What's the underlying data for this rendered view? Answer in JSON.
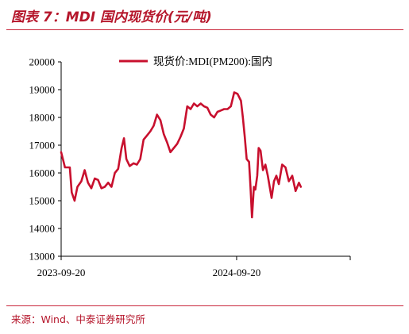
{
  "figure": {
    "title": "图表 7：MDI 国内现货价(元/吨)",
    "source": "来源：Wind、中泰证券研究所"
  },
  "colors": {
    "accent": "#b5162b",
    "series": "#c8102e",
    "axis": "#000000"
  },
  "chart_data": {
    "type": "line",
    "title": "",
    "xlabel": "",
    "ylabel": "",
    "ylim": [
      13000,
      20000
    ],
    "yticks": [
      13000,
      14000,
      15000,
      16000,
      17000,
      18000,
      19000,
      20000
    ],
    "xlim": [
      "2023-09-20",
      "2025-05-15"
    ],
    "xticks": [
      "2023-09-20",
      "2024-09-20"
    ],
    "grid": false,
    "legend": "top",
    "series": [
      {
        "name": "现货价:MDI(PM200):国内",
        "color": "#c8102e",
        "points": [
          [
            "2023-09-20",
            16750
          ],
          [
            "2023-09-28",
            16200
          ],
          [
            "2023-10-08",
            16200
          ],
          [
            "2023-10-12",
            15300
          ],
          [
            "2023-10-18",
            15000
          ],
          [
            "2023-10-24",
            15500
          ],
          [
            "2023-11-01",
            15700
          ],
          [
            "2023-11-08",
            16100
          ],
          [
            "2023-11-15",
            15650
          ],
          [
            "2023-11-22",
            15450
          ],
          [
            "2023-11-29",
            15800
          ],
          [
            "2023-12-06",
            15750
          ],
          [
            "2023-12-13",
            15450
          ],
          [
            "2023-12-20",
            15500
          ],
          [
            "2023-12-27",
            15650
          ],
          [
            "2024-01-03",
            15500
          ],
          [
            "2024-01-10",
            16000
          ],
          [
            "2024-01-17",
            16150
          ],
          [
            "2024-01-24",
            16900
          ],
          [
            "2024-01-29",
            17250
          ],
          [
            "2024-02-03",
            16500
          ],
          [
            "2024-02-10",
            16250
          ],
          [
            "2024-02-18",
            16350
          ],
          [
            "2024-02-25",
            16300
          ],
          [
            "2024-03-03",
            16500
          ],
          [
            "2024-03-10",
            17200
          ],
          [
            "2024-03-17",
            17350
          ],
          [
            "2024-03-24",
            17500
          ],
          [
            "2024-03-31",
            17700
          ],
          [
            "2024-04-07",
            18100
          ],
          [
            "2024-04-14",
            17900
          ],
          [
            "2024-04-21",
            17400
          ],
          [
            "2024-04-28",
            17100
          ],
          [
            "2024-05-05",
            16750
          ],
          [
            "2024-05-12",
            16900
          ],
          [
            "2024-05-19",
            17050
          ],
          [
            "2024-05-26",
            17300
          ],
          [
            "2024-06-02",
            17600
          ],
          [
            "2024-06-09",
            18400
          ],
          [
            "2024-06-16",
            18300
          ],
          [
            "2024-06-23",
            18500
          ],
          [
            "2024-06-30",
            18400
          ],
          [
            "2024-07-07",
            18500
          ],
          [
            "2024-07-14",
            18400
          ],
          [
            "2024-07-21",
            18350
          ],
          [
            "2024-07-28",
            18100
          ],
          [
            "2024-08-04",
            18000
          ],
          [
            "2024-08-11",
            18200
          ],
          [
            "2024-08-18",
            18250
          ],
          [
            "2024-08-25",
            18300
          ],
          [
            "2024-09-01",
            18300
          ],
          [
            "2024-09-08",
            18400
          ],
          [
            "2024-09-15",
            18900
          ],
          [
            "2024-09-22",
            18850
          ],
          [
            "2024-09-29",
            18600
          ],
          [
            "2024-10-03",
            18000
          ],
          [
            "2024-10-07",
            17300
          ],
          [
            "2024-10-11",
            16500
          ],
          [
            "2024-10-16",
            16400
          ],
          [
            "2024-10-19",
            15500
          ],
          [
            "2024-10-22",
            14400
          ],
          [
            "2024-10-26",
            15500
          ],
          [
            "2024-10-29",
            15400
          ],
          [
            "2024-11-02",
            15900
          ],
          [
            "2024-11-05",
            16900
          ],
          [
            "2024-11-09",
            16800
          ],
          [
            "2024-11-14",
            16100
          ],
          [
            "2024-11-19",
            16300
          ],
          [
            "2024-11-24",
            15900
          ],
          [
            "2024-11-29",
            15400
          ],
          [
            "2024-12-02",
            15100
          ],
          [
            "2024-12-07",
            15700
          ],
          [
            "2024-12-12",
            15900
          ],
          [
            "2024-12-17",
            15600
          ],
          [
            "2024-12-24",
            16300
          ],
          [
            "2024-12-31",
            16200
          ],
          [
            "2025-01-07",
            15700
          ],
          [
            "2025-01-14",
            15900
          ],
          [
            "2025-01-21",
            15350
          ],
          [
            "2025-01-28",
            15650
          ],
          [
            "2025-02-01",
            15500
          ]
        ]
      }
    ]
  }
}
